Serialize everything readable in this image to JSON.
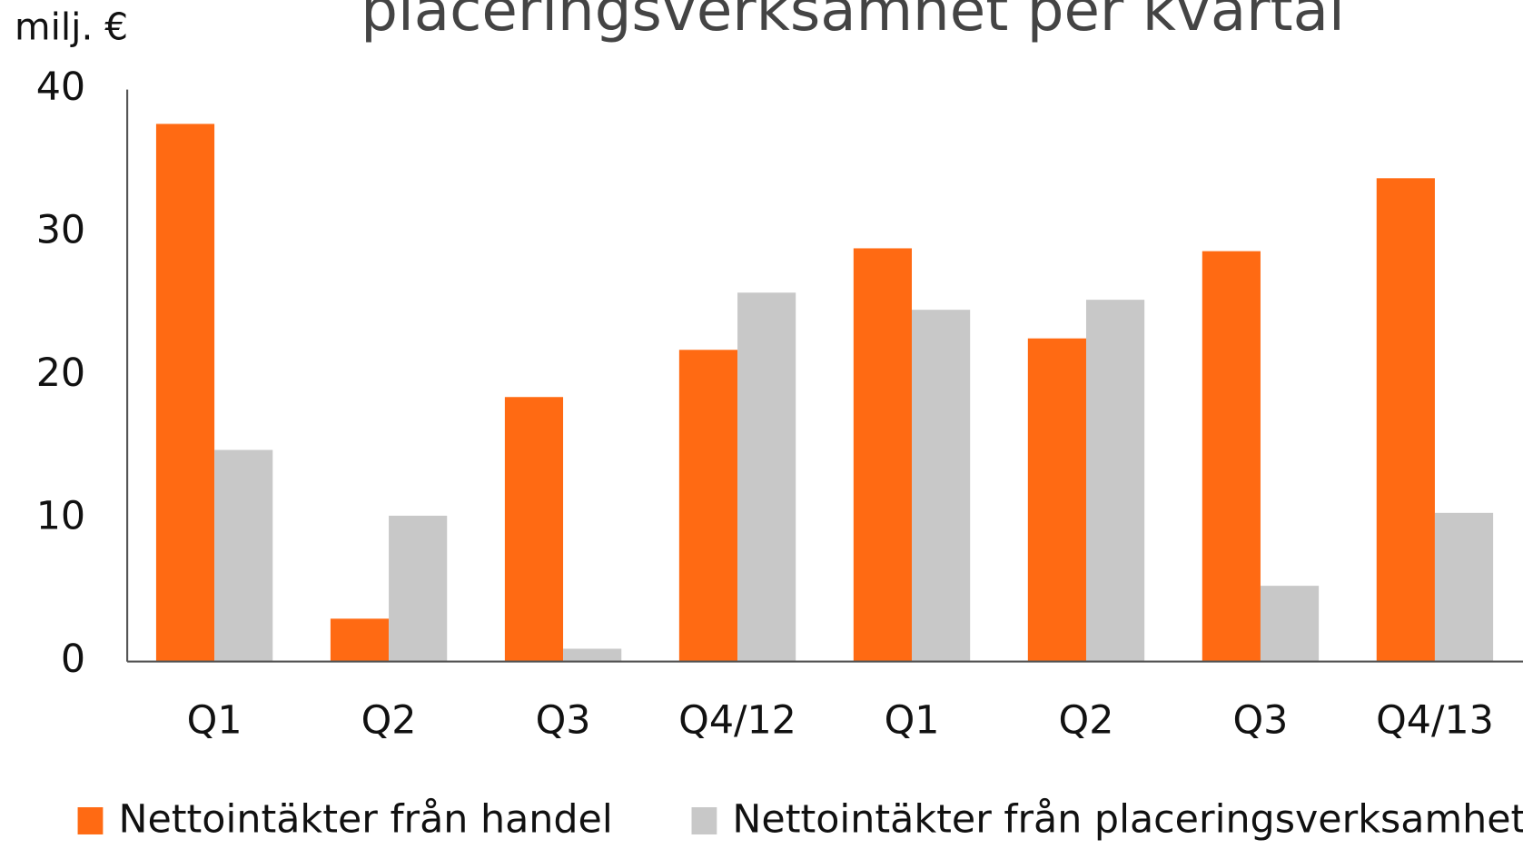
{
  "chart_data": {
    "type": "bar",
    "title": "placeringsverksamhet per kvartal",
    "y_label": "milj. €",
    "categories": [
      "Q1",
      "Q2",
      "Q3",
      "Q4/12",
      "Q1",
      "Q2",
      "Q3",
      "Q4/13"
    ],
    "series": [
      {
        "name": "Nettointäkter från handel",
        "color": "#ff6a13",
        "values": [
          37.6,
          3.0,
          18.5,
          21.8,
          28.9,
          22.6,
          28.7,
          33.8
        ]
      },
      {
        "name": "Nettointäkter från placeringsverksamhet",
        "color": "#c8c8c8",
        "values": [
          14.8,
          10.2,
          0.9,
          25.8,
          24.6,
          25.3,
          5.3,
          10.4
        ]
      }
    ],
    "ylim": [
      0,
      40
    ],
    "yticks": [
      0,
      10,
      20,
      30,
      40
    ],
    "grid": false
  }
}
